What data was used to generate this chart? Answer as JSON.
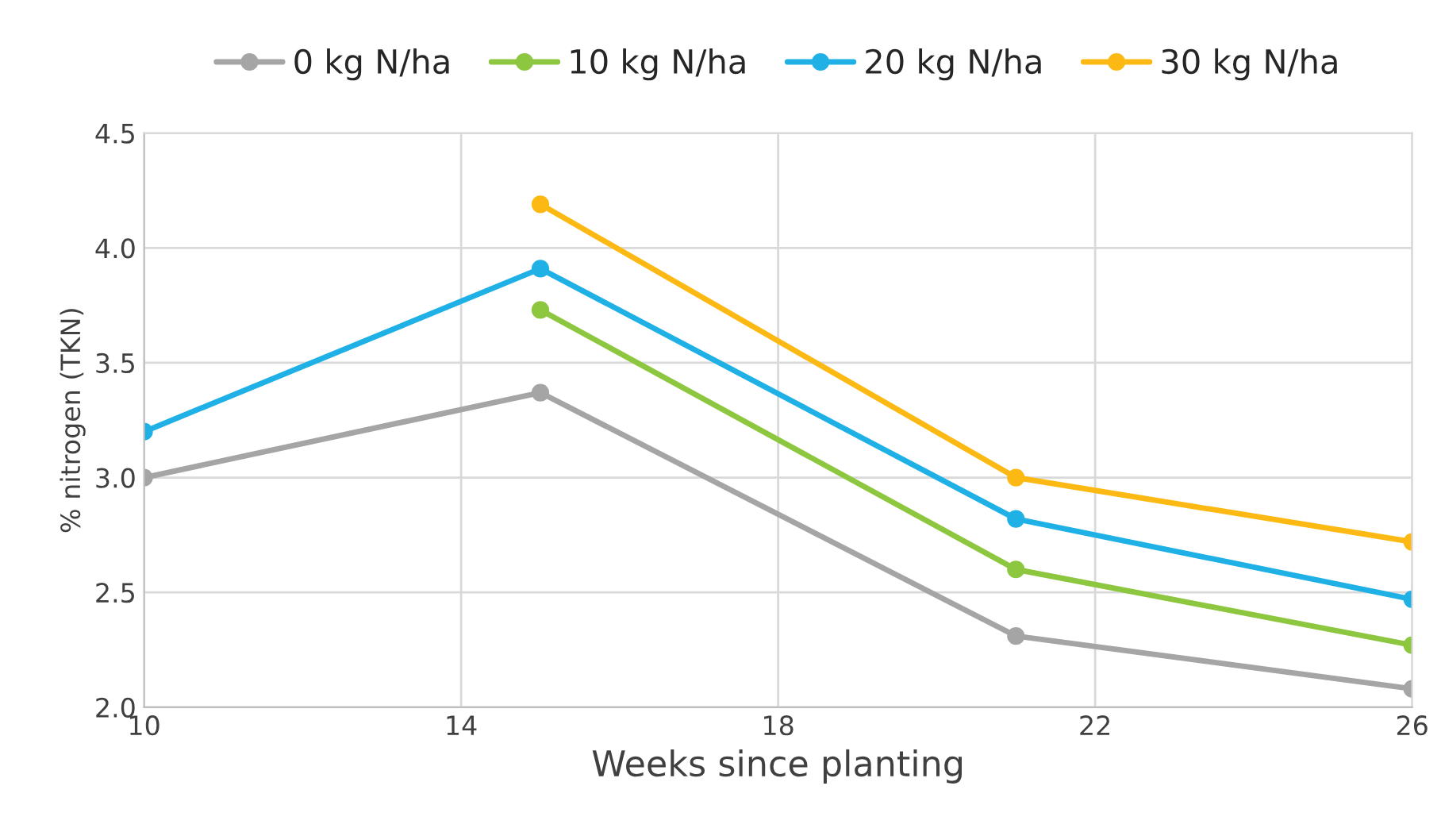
{
  "chart_data": {
    "type": "line",
    "xlabel": "Weeks since planting",
    "ylabel": "% nitrogen (TKN)",
    "x": [
      10,
      15,
      21,
      26
    ],
    "series": [
      {
        "name": "0 kg N/ha",
        "color": "#a5a5a5",
        "values": [
          3.0,
          3.37,
          2.31,
          2.08
        ]
      },
      {
        "name": "10 kg N/ha",
        "color": "#8dc63f",
        "values": [
          null,
          3.73,
          2.6,
          2.27
        ]
      },
      {
        "name": "20 kg N/ha",
        "color": "#1fb0e6",
        "values": [
          3.2,
          3.91,
          2.82,
          2.47
        ]
      },
      {
        "name": "30 kg N/ha",
        "color": "#fdb913",
        "values": [
          null,
          4.19,
          3.0,
          2.72
        ]
      }
    ],
    "xlim": [
      10,
      26
    ],
    "xticks": [
      10,
      14,
      18,
      22,
      26
    ],
    "ylim": [
      2.0,
      4.5
    ],
    "yticks": [
      {
        "value": 2.0,
        "label": "2.0"
      },
      {
        "value": 2.5,
        "label": "2.5"
      },
      {
        "value": 3.0,
        "label": "3.0"
      },
      {
        "value": 3.5,
        "label": "3.5"
      },
      {
        "value": 4.0,
        "label": "4.0"
      },
      {
        "value": 4.5,
        "label": "4.5"
      }
    ],
    "grid": true,
    "legend": "top",
    "marker": "circle",
    "line_style": "solid"
  }
}
